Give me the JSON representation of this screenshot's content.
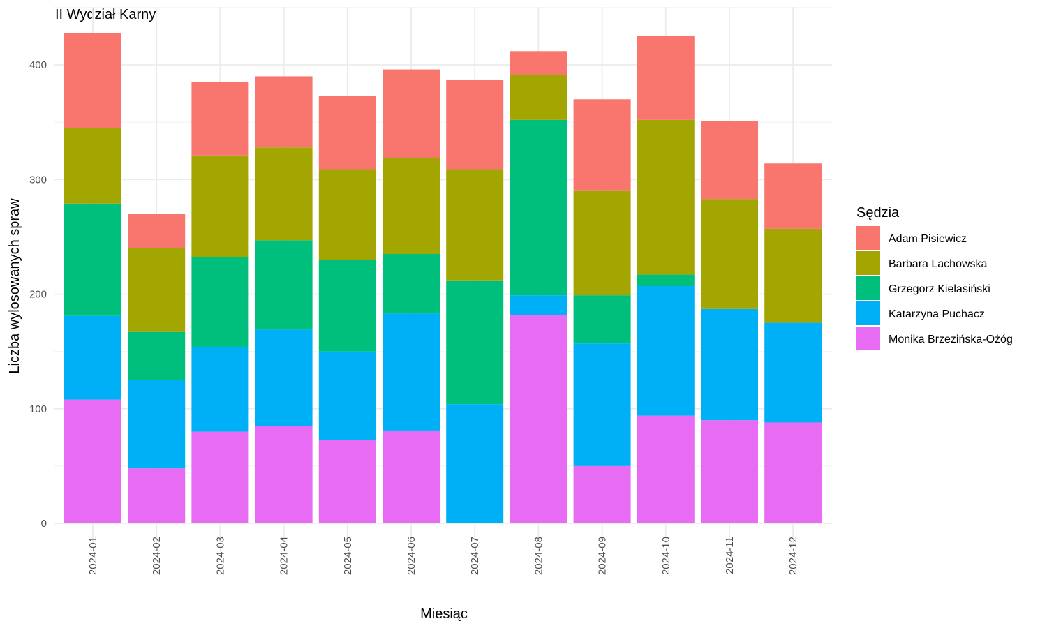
{
  "chart_data": {
    "type": "bar",
    "stacked": true,
    "title": "II Wydział Karny",
    "xlabel": "Miesiąc",
    "ylabel": "Liczba wylosowanych spraw",
    "ylim": [
      0,
      435
    ],
    "yticks": [
      0,
      100,
      200,
      300,
      400
    ],
    "grid": true,
    "legend_title": "Sędzia",
    "legend_position": "right",
    "categories": [
      "2024-01",
      "2024-02",
      "2024-03",
      "2024-04",
      "2024-05",
      "2024-06",
      "2024-07",
      "2024-08",
      "2024-09",
      "2024-10",
      "2024-11",
      "2024-12"
    ],
    "series": [
      {
        "name": "Adam Pisiewicz",
        "color": "#F8766D",
        "values": [
          83,
          30,
          64,
          62,
          64,
          77,
          78,
          21,
          80,
          73,
          68,
          57
        ]
      },
      {
        "name": "Barbara Lachowska",
        "color": "#A3A500",
        "values": [
          66,
          73,
          89,
          81,
          79,
          84,
          97,
          39,
          91,
          135,
          96,
          82
        ]
      },
      {
        "name": "Grzegorz Kielasiński",
        "color": "#00BF7D",
        "values": [
          98,
          42,
          78,
          78,
          80,
          52,
          108,
          153,
          42,
          10,
          0,
          0
        ]
      },
      {
        "name": "Katarzyna Puchacz",
        "color": "#00B0F6",
        "values": [
          73,
          77,
          74,
          84,
          77,
          102,
          104,
          17,
          107,
          113,
          97,
          87
        ]
      },
      {
        "name": "Monika Brzezińska-Ożóg",
        "color": "#E76BF3",
        "values": [
          108,
          48,
          80,
          85,
          73,
          81,
          0,
          182,
          50,
          94,
          90,
          88
        ]
      }
    ]
  }
}
